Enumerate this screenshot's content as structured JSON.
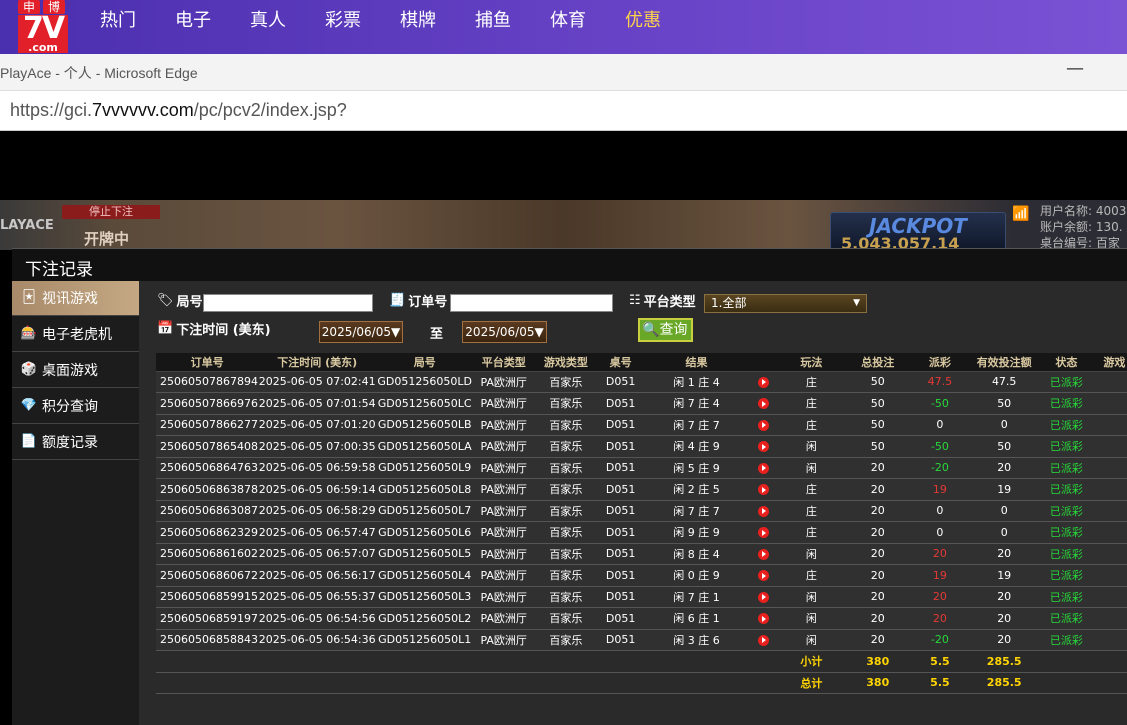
{
  "topnav": {
    "logo": {
      "top_left": "申",
      "top_right": "博",
      "big": "7V",
      "sub": ".com"
    },
    "items": [
      {
        "label": "热门",
        "active": false
      },
      {
        "label": "电子",
        "active": false
      },
      {
        "label": "真人",
        "active": false
      },
      {
        "label": "彩票",
        "active": false
      },
      {
        "label": "棋牌",
        "active": false
      },
      {
        "label": "捕鱼",
        "active": false
      },
      {
        "label": "体育",
        "active": false
      },
      {
        "label": "优惠",
        "active": true
      }
    ]
  },
  "window": {
    "title": "PlayAce - 个人 - Microsoft Edge",
    "minimize": "—",
    "url_prefix": "https://gci.",
    "url_domain": "7vvvvvv.com",
    "url_path": "/pc/pcv2/index.jsp?"
  },
  "game": {
    "brand": "LAYACE",
    "stop_bet": "停止下注",
    "dealing": "开牌中",
    "jackpot": "JACKPOT",
    "jackpot_value": "5,043,057.14",
    "user_lines": [
      "用户名称: 4003",
      "账户余额: 130.",
      "桌台编号: 百家"
    ]
  },
  "panel": {
    "title": "下注记录",
    "sidebar": [
      {
        "label": "视讯游戏",
        "icon": "cards-icon",
        "active": true
      },
      {
        "label": "电子老虎机",
        "icon": "slot-icon",
        "active": false
      },
      {
        "label": "桌面游戏",
        "icon": "dice-icon",
        "active": false
      },
      {
        "label": "积分查询",
        "icon": "diamond-icon",
        "active": false
      },
      {
        "label": "额度记录",
        "icon": "document-icon",
        "active": false
      }
    ],
    "filters": {
      "round_label": "局号",
      "order_label": "订单号",
      "platform_label": "平台类型",
      "platform_value": "1.全部",
      "time_label": "下注时间 (美东)",
      "date_from": "2025/06/05▼",
      "to_label": "至",
      "date_to": "2025/06/05▼",
      "query_label": "查询"
    },
    "table": {
      "headers": [
        "订单号",
        "下注时间 (美东)",
        "局号",
        "平台类型",
        "游戏类型",
        "桌号",
        "结果",
        "",
        "玩法",
        "总投注",
        "派彩",
        "有效投注额",
        "状态",
        "游戏"
      ],
      "rows": [
        {
          "order": "250605078678944",
          "time": "2025-06-05 07:02:41",
          "round": "GD051256050LD",
          "platform": "PA欧洲厅",
          "game": "百家乐",
          "table": "D051",
          "result": "闲 1 庄 4",
          "play": "庄",
          "bet": "50",
          "payout": "47.5",
          "payout_sign": "pos",
          "valid": "47.5",
          "status": "已派彩"
        },
        {
          "order": "250605078669762",
          "time": "2025-06-05 07:01:54",
          "round": "GD051256050LC",
          "platform": "PA欧洲厅",
          "game": "百家乐",
          "table": "D051",
          "result": "闲 7 庄 4",
          "play": "庄",
          "bet": "50",
          "payout": "-50",
          "payout_sign": "neg",
          "valid": "50",
          "status": "已派彩"
        },
        {
          "order": "250605078662770",
          "time": "2025-06-05 07:01:20",
          "round": "GD051256050LB",
          "platform": "PA欧洲厅",
          "game": "百家乐",
          "table": "D051",
          "result": "闲 7 庄 7",
          "play": "庄",
          "bet": "50",
          "payout": "0",
          "payout_sign": "zero",
          "valid": "0",
          "status": "已派彩"
        },
        {
          "order": "250605078654086",
          "time": "2025-06-05 07:00:35",
          "round": "GD051256050LA",
          "platform": "PA欧洲厅",
          "game": "百家乐",
          "table": "D051",
          "result": "闲 4 庄 9",
          "play": "闲",
          "bet": "50",
          "payout": "-50",
          "payout_sign": "neg",
          "valid": "50",
          "status": "已派彩"
        },
        {
          "order": "250605068647634",
          "time": "2025-06-05 06:59:58",
          "round": "GD051256050L9",
          "platform": "PA欧洲厅",
          "game": "百家乐",
          "table": "D051",
          "result": "闲 5 庄 9",
          "play": "闲",
          "bet": "20",
          "payout": "-20",
          "payout_sign": "neg",
          "valid": "20",
          "status": "已派彩"
        },
        {
          "order": "250605068638781",
          "time": "2025-06-05 06:59:14",
          "round": "GD051256050L8",
          "platform": "PA欧洲厅",
          "game": "百家乐",
          "table": "D051",
          "result": "闲 2 庄 5",
          "play": "庄",
          "bet": "20",
          "payout": "19",
          "payout_sign": "pos",
          "valid": "19",
          "status": "已派彩"
        },
        {
          "order": "250605068630871",
          "time": "2025-06-05 06:58:29",
          "round": "GD051256050L7",
          "platform": "PA欧洲厅",
          "game": "百家乐",
          "table": "D051",
          "result": "闲 7 庄 7",
          "play": "庄",
          "bet": "20",
          "payout": "0",
          "payout_sign": "zero",
          "valid": "0",
          "status": "已派彩"
        },
        {
          "order": "250605068623291",
          "time": "2025-06-05 06:57:47",
          "round": "GD051256050L6",
          "platform": "PA欧洲厅",
          "game": "百家乐",
          "table": "D051",
          "result": "闲 9 庄 9",
          "play": "庄",
          "bet": "20",
          "payout": "0",
          "payout_sign": "zero",
          "valid": "0",
          "status": "已派彩"
        },
        {
          "order": "250605068616022",
          "time": "2025-06-05 06:57:07",
          "round": "GD051256050L5",
          "platform": "PA欧洲厅",
          "game": "百家乐",
          "table": "D051",
          "result": "闲 8 庄 4",
          "play": "闲",
          "bet": "20",
          "payout": "20",
          "payout_sign": "pos",
          "valid": "20",
          "status": "已派彩"
        },
        {
          "order": "250605068606729",
          "time": "2025-06-05 06:56:17",
          "round": "GD051256050L4",
          "platform": "PA欧洲厅",
          "game": "百家乐",
          "table": "D051",
          "result": "闲 0 庄 9",
          "play": "庄",
          "bet": "20",
          "payout": "19",
          "payout_sign": "pos",
          "valid": "19",
          "status": "已派彩"
        },
        {
          "order": "250605068599151",
          "time": "2025-06-05 06:55:37",
          "round": "GD051256050L3",
          "platform": "PA欧洲厅",
          "game": "百家乐",
          "table": "D051",
          "result": "闲 7 庄 1",
          "play": "闲",
          "bet": "20",
          "payout": "20",
          "payout_sign": "pos",
          "valid": "20",
          "status": "已派彩"
        },
        {
          "order": "250605068591973",
          "time": "2025-06-05 06:54:56",
          "round": "GD051256050L2",
          "platform": "PA欧洲厅",
          "game": "百家乐",
          "table": "D051",
          "result": "闲 6 庄 1",
          "play": "闲",
          "bet": "20",
          "payout": "20",
          "payout_sign": "pos",
          "valid": "20",
          "status": "已派彩"
        },
        {
          "order": "250605068588435",
          "time": "2025-06-05 06:54:36",
          "round": "GD051256050L1",
          "platform": "PA欧洲厅",
          "game": "百家乐",
          "table": "D051",
          "result": "闲 3 庄 6",
          "play": "闲",
          "bet": "20",
          "payout": "-20",
          "payout_sign": "neg",
          "valid": "20",
          "status": "已派彩"
        }
      ],
      "subtotal": {
        "label": "小计",
        "bet": "380",
        "payout": "5.5",
        "valid": "285.5"
      },
      "total": {
        "label": "总计",
        "bet": "380",
        "payout": "5.5",
        "valid": "285.5"
      }
    }
  }
}
